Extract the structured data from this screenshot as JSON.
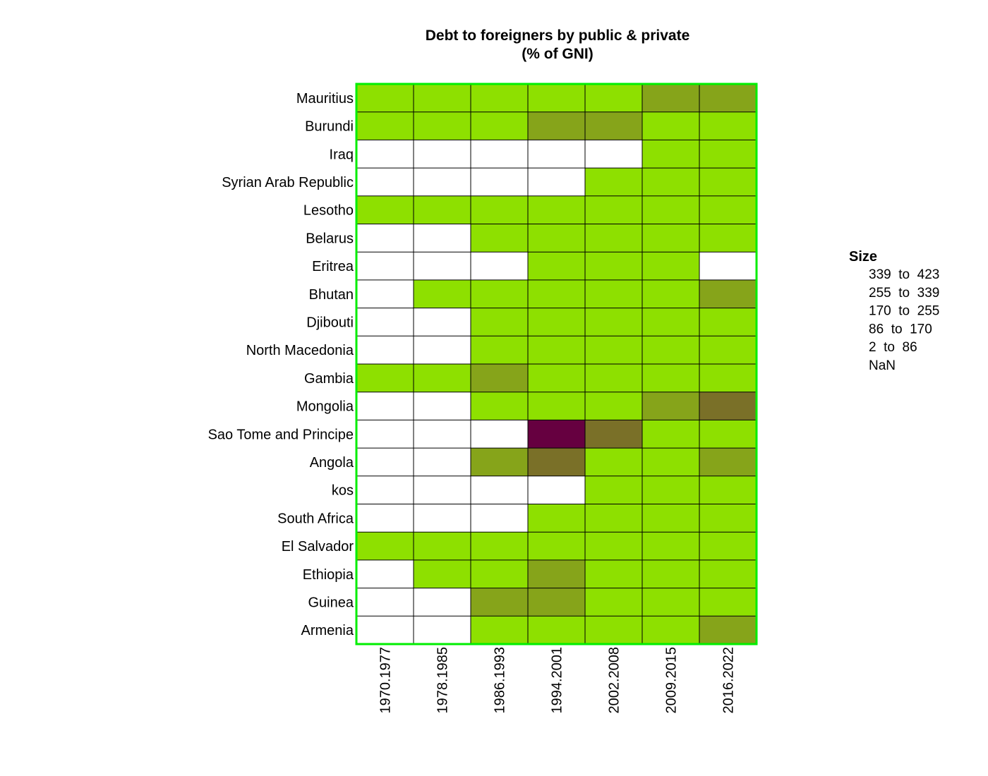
{
  "chart_data": {
    "type": "heatmap",
    "title_lines": [
      "Debt to foreigners by public & private",
      "(% of GNI)"
    ],
    "columns": [
      "1970.1977",
      "1978.1985",
      "1986.1993",
      "1994.2001",
      "2002.2008",
      "2009.2015",
      "2016.2022"
    ],
    "rows": [
      "Mauritius",
      "Burundi",
      "Iraq",
      "Syrian Arab Republic",
      "Lesotho",
      "Belarus",
      "Eritrea",
      "Bhutan",
      "Djibouti",
      "North Macedonia",
      "Gambia",
      "Mongolia",
      "Sao Tome and Principe",
      "Angola",
      "kos",
      "South Africa",
      "El Salvador",
      "Ethiopia",
      "Guinea",
      "Armenia"
    ],
    "categories_by_cell": [
      [
        "2 to 86",
        "2 to 86",
        "2 to 86",
        "2 to 86",
        "2 to 86",
        "86 to 170",
        "86 to 170"
      ],
      [
        "2 to 86",
        "2 to 86",
        "2 to 86",
        "86 to 170",
        "86 to 170",
        "2 to 86",
        "2 to 86"
      ],
      [
        "NaN",
        "NaN",
        "NaN",
        "NaN",
        "NaN",
        "2 to 86",
        "2 to 86"
      ],
      [
        "NaN",
        "NaN",
        "NaN",
        "NaN",
        "2 to 86",
        "2 to 86",
        "2 to 86"
      ],
      [
        "2 to 86",
        "2 to 86",
        "2 to 86",
        "2 to 86",
        "2 to 86",
        "2 to 86",
        "2 to 86"
      ],
      [
        "NaN",
        "NaN",
        "2 to 86",
        "2 to 86",
        "2 to 86",
        "2 to 86",
        "2 to 86"
      ],
      [
        "NaN",
        "NaN",
        "NaN",
        "2 to 86",
        "2 to 86",
        "2 to 86",
        "NaN"
      ],
      [
        "NaN",
        "2 to 86",
        "2 to 86",
        "2 to 86",
        "2 to 86",
        "2 to 86",
        "86 to 170"
      ],
      [
        "NaN",
        "NaN",
        "2 to 86",
        "2 to 86",
        "2 to 86",
        "2 to 86",
        "2 to 86"
      ],
      [
        "NaN",
        "NaN",
        "2 to 86",
        "2 to 86",
        "2 to 86",
        "2 to 86",
        "2 to 86"
      ],
      [
        "2 to 86",
        "2 to 86",
        "86 to 170",
        "2 to 86",
        "2 to 86",
        "2 to 86",
        "2 to 86"
      ],
      [
        "NaN",
        "NaN",
        "2 to 86",
        "2 to 86",
        "2 to 86",
        "86 to 170",
        "170 to 255"
      ],
      [
        "NaN",
        "NaN",
        "NaN",
        "339 to 423",
        "170 to 255",
        "2 to 86",
        "2 to 86"
      ],
      [
        "NaN",
        "NaN",
        "86 to 170",
        "170 to 255",
        "2 to 86",
        "2 to 86",
        "86 to 170"
      ],
      [
        "NaN",
        "NaN",
        "NaN",
        "NaN",
        "2 to 86",
        "2 to 86",
        "2 to 86"
      ],
      [
        "NaN",
        "NaN",
        "NaN",
        "2 to 86",
        "2 to 86",
        "2 to 86",
        "2 to 86"
      ],
      [
        "2 to 86",
        "2 to 86",
        "2 to 86",
        "2 to 86",
        "2 to 86",
        "2 to 86",
        "2 to 86"
      ],
      [
        "NaN",
        "2 to 86",
        "2 to 86",
        "86 to 170",
        "2 to 86",
        "2 to 86",
        "2 to 86"
      ],
      [
        "NaN",
        "NaN",
        "86 to 170",
        "86 to 170",
        "2 to 86",
        "2 to 86",
        "2 to 86"
      ],
      [
        "NaN",
        "NaN",
        "2 to 86",
        "2 to 86",
        "2 to 86",
        "2 to 86",
        "86 to 170"
      ]
    ],
    "legend": {
      "title": "Size",
      "placement": "right",
      "items": [
        {
          "label": "339  to  423",
          "key": "339 to 423",
          "color": "#660040"
        },
        {
          "label": "255  to  339",
          "key": "255 to 339",
          "color": "#6e4a36"
        },
        {
          "label": "170  to  255",
          "key": "170 to 255",
          "color": "#7a7028"
        },
        {
          "label": "86  to  170",
          "key": "86 to 170",
          "color": "#86a41a"
        },
        {
          "label": "2  to  86",
          "key": "2 to 86",
          "color": "#8ee000"
        },
        {
          "label": "NaN",
          "key": "NaN",
          "color": "#ffffff"
        }
      ]
    },
    "frame_color": "#00ee00",
    "grid_color": "#000000"
  }
}
